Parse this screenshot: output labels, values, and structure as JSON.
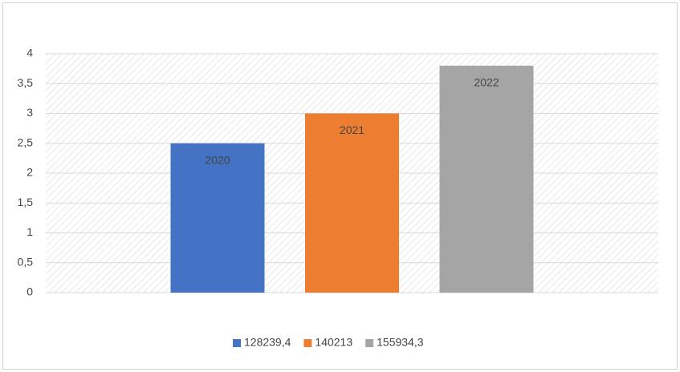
{
  "chart_data": {
    "type": "bar",
    "series": [
      {
        "name": "128239,4",
        "color": "#4472c4",
        "values": [
          2.5
        ],
        "annotation": "2020"
      },
      {
        "name": "140213",
        "color": "#ed7d31",
        "values": [
          3
        ],
        "annotation": "2021"
      },
      {
        "name": "155934,3",
        "color": "#a5a5a5",
        "values": [
          3.8
        ],
        "annotation": "2022"
      }
    ],
    "ylim": [
      0,
      4
    ],
    "yticks": [
      0,
      {
        "value": 0.5,
        "label": "0,5"
      },
      1,
      {
        "value": 1.5,
        "label": "1,5"
      },
      2,
      {
        "value": 2.5,
        "label": "2,5"
      },
      3,
      {
        "value": 3.5,
        "label": "3,5"
      },
      4
    ],
    "grid": true,
    "legend": "bottom"
  }
}
